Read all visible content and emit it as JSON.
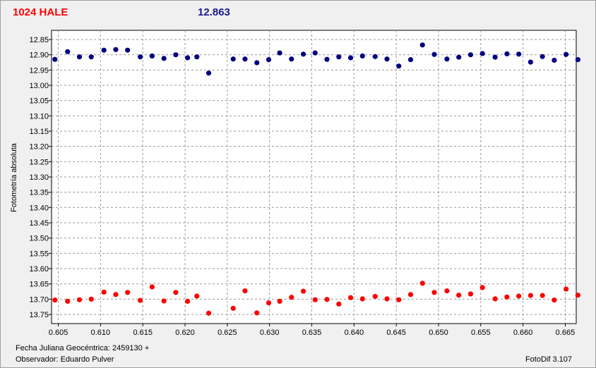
{
  "header": {
    "object_name": "1024 HALE",
    "magnitude": "12.863"
  },
  "footer": {
    "jd_text": "Fecha Juliana Geocéntrica: 2459130 +",
    "observer_text": "Observador: Eduardo Pulver",
    "software_text": "FotoDif 3.107"
  },
  "colors": {
    "series_top": "#000080",
    "series_bottom": "#ff0000",
    "title_object": "#ff0000",
    "title_magnitude": "#1a1a8c"
  },
  "chart_data": {
    "type": "scatter",
    "title": "",
    "xlabel": "",
    "ylabel": "Fotometría absoluta",
    "xlim": [
      0.6042,
      0.6663
    ],
    "ylim": [
      12.82,
      13.78
    ],
    "y_inverted": true,
    "grid": true,
    "legend": "none",
    "xticks": [
      "0.605",
      "0.610",
      "0.615",
      "0.620",
      "0.625",
      "0.630",
      "0.635",
      "0.640",
      "0.645",
      "0.650",
      "0.655",
      "0.660",
      "0.665"
    ],
    "yticks": [
      "12.85",
      "12.90",
      "12.95",
      "13.00",
      "13.05",
      "13.10",
      "13.15",
      "13.20",
      "13.25",
      "13.30",
      "13.35",
      "13.40",
      "13.45",
      "13.50",
      "13.55",
      "13.60",
      "13.65",
      "13.70",
      "13.75"
    ],
    "series": [
      {
        "color": "#000080",
        "x": [
          0.6046,
          0.6061,
          0.6075,
          0.6089,
          0.6104,
          0.6118,
          0.6132,
          0.6147,
          0.6161,
          0.6175,
          0.6189,
          0.6203,
          0.6214,
          0.6228,
          0.6257,
          0.6271,
          0.6285,
          0.6299,
          0.6312,
          0.6326,
          0.634,
          0.6354,
          0.6368,
          0.6382,
          0.6396,
          0.641,
          0.6425,
          0.6439,
          0.6453,
          0.6467,
          0.6481,
          0.6495,
          0.651,
          0.6524,
          0.6538,
          0.6552,
          0.6567,
          0.6581,
          0.6595,
          0.6609,
          0.6623,
          0.6637,
          0.6651,
          0.6665
        ],
        "y": [
          12.915,
          12.89,
          12.907,
          12.907,
          12.885,
          12.883,
          12.885,
          12.907,
          12.904,
          12.912,
          12.9,
          12.91,
          12.907,
          12.96,
          12.914,
          12.914,
          12.926,
          12.916,
          12.894,
          12.914,
          12.898,
          12.894,
          12.915,
          12.907,
          12.91,
          12.904,
          12.906,
          12.914,
          12.937,
          12.916,
          12.868,
          12.899,
          12.914,
          12.908,
          12.9,
          12.896,
          12.908,
          12.897,
          12.898,
          12.924,
          12.906,
          12.918,
          12.899,
          12.916
        ]
      },
      {
        "color": "#ff0000",
        "x": [
          0.6046,
          0.6061,
          0.6075,
          0.6089,
          0.6104,
          0.6118,
          0.6132,
          0.6147,
          0.6161,
          0.6175,
          0.6189,
          0.6203,
          0.6214,
          0.6228,
          0.6257,
          0.6271,
          0.6285,
          0.6299,
          0.6312,
          0.6326,
          0.634,
          0.6354,
          0.6368,
          0.6382,
          0.6396,
          0.641,
          0.6425,
          0.6439,
          0.6453,
          0.6467,
          0.6481,
          0.6495,
          0.651,
          0.6524,
          0.6538,
          0.6552,
          0.6567,
          0.6581,
          0.6595,
          0.6609,
          0.6623,
          0.6637,
          0.6651,
          0.6665
        ],
        "y": [
          13.703,
          13.707,
          13.702,
          13.7,
          13.677,
          13.685,
          13.678,
          13.704,
          13.66,
          13.706,
          13.678,
          13.707,
          13.69,
          13.746,
          13.73,
          13.673,
          13.745,
          13.712,
          13.707,
          13.694,
          13.674,
          13.702,
          13.701,
          13.716,
          13.695,
          13.699,
          13.691,
          13.699,
          13.702,
          13.685,
          13.648,
          13.678,
          13.673,
          13.687,
          13.683,
          13.662,
          13.699,
          13.693,
          13.69,
          13.688,
          13.688,
          13.703,
          13.667,
          13.687
        ]
      }
    ]
  }
}
